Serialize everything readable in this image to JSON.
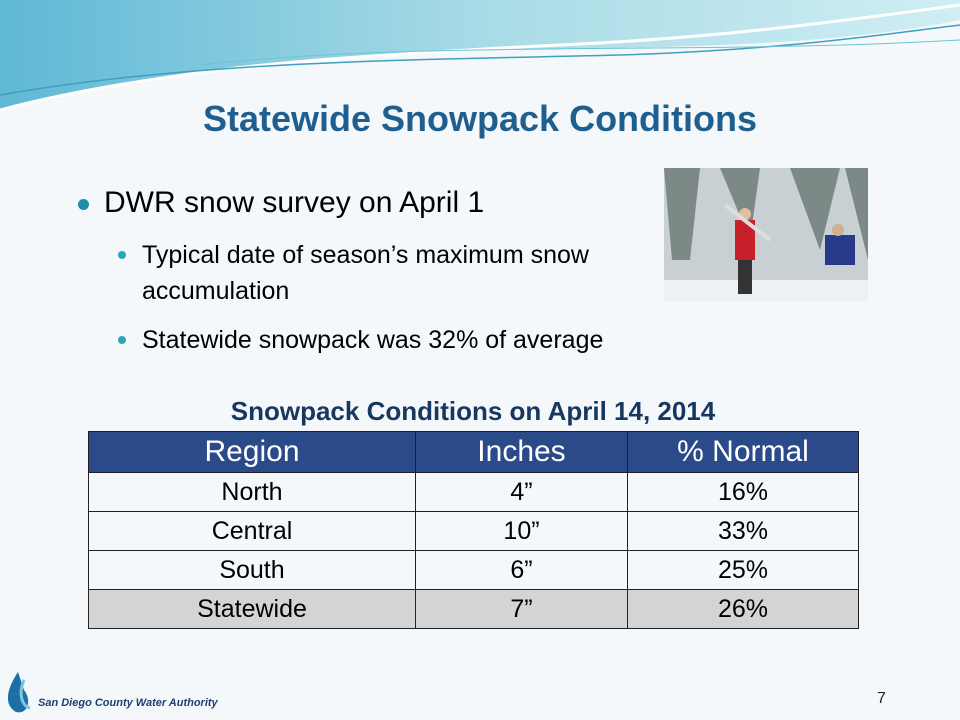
{
  "slide": {
    "title": "Statewide Snowpack Conditions",
    "bullets": [
      {
        "text": "DWR snow survey on April 1",
        "sub": [
          "Typical date of season’s maximum snow accumulation",
          "Statewide snowpack was 32% of average"
        ]
      }
    ],
    "table": {
      "caption": "Snowpack Conditions on April 14, 2014",
      "header": [
        "Region",
        "Inches",
        "% Normal"
      ],
      "rows": [
        [
          "North",
          "4”",
          "16%"
        ],
        [
          "Central",
          "10”",
          "33%"
        ],
        [
          "South",
          "6”",
          "25%"
        ],
        [
          "Statewide",
          "7”",
          "26%"
        ]
      ]
    },
    "footer": {
      "organization": "San Diego County Water Authority",
      "page_number": "7"
    }
  }
}
